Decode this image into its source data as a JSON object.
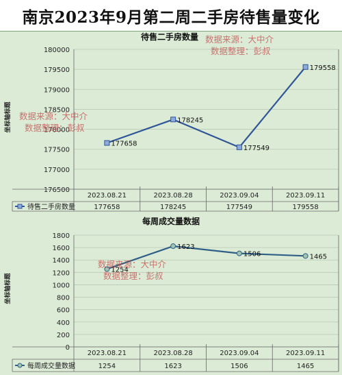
{
  "page_title": "南京2023年9月第二周二手房待售量变化",
  "watermark": {
    "line1": "数据来源：大中介",
    "line2": "数据整理：彭叔"
  },
  "chart_data": [
    {
      "type": "line",
      "title": "待售二手房数量",
      "ylabel": "坐标轴标题",
      "categories": [
        "2023.08.21",
        "2023.08.28",
        "2023.09.04",
        "2023.09.11"
      ],
      "series": [
        {
          "name": "待售二手房数量",
          "values": [
            177658,
            178245,
            177549,
            179558
          ]
        }
      ],
      "ylim": [
        176500,
        180000
      ],
      "yticks": [
        176500,
        177000,
        177500,
        178000,
        178500,
        179000,
        179500,
        180000
      ],
      "marker": "square",
      "color": "#2f5597",
      "data_table": true
    },
    {
      "type": "line",
      "title": "每周成交量数据",
      "ylabel": "坐标轴标题",
      "categories": [
        "2023.08.21",
        "2023.08.28",
        "2023.09.04",
        "2023.09.11"
      ],
      "series": [
        {
          "name": "每周成交量数据",
          "values": [
            1254,
            1623,
            1506,
            1465
          ]
        }
      ],
      "ylim": [
        0,
        1800
      ],
      "yticks": [
        0,
        200,
        400,
        600,
        800,
        1000,
        1200,
        1400,
        1600,
        1800
      ],
      "marker": "circle",
      "color": "#2f5f86",
      "data_table": true
    }
  ]
}
